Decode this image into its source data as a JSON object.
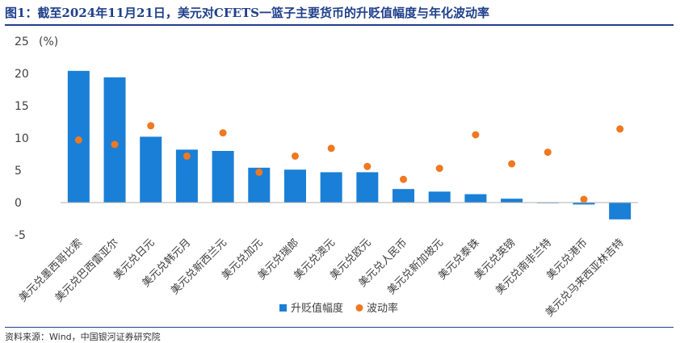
{
  "header": {
    "title": "图1：截至2024年11月21日，美元对CFETS一篮子主要货币的升贬值幅度与年化波动率",
    "source": "资料来源：Wind，中国银河证券研究院"
  },
  "chart_data": {
    "type": "bar",
    "unit": "(%)",
    "categories": [
      "美元兑墨西哥比索",
      "美元兑巴西雷亚尔",
      "美元兑日元",
      "美元兑韩元月",
      "美元兑新西兰元",
      "美元兑加元",
      "美元兑瑞郎",
      "美元兑澳元",
      "美元兑欧元",
      "美元兑人民币",
      "美元兑新加坡元",
      "美元兑泰铢",
      "美元兑英镑",
      "美元兑南非兰特",
      "美元兑港币",
      "美元兑马来西亚林吉特"
    ],
    "series": [
      {
        "name": "升贬值幅度",
        "type": "bar",
        "color": "#1a7fd6",
        "values": [
          20.4,
          19.4,
          10.2,
          8.2,
          8.0,
          5.4,
          5.1,
          4.7,
          4.7,
          2.1,
          1.7,
          1.3,
          0.6,
          -0.1,
          -0.3,
          -2.6
        ]
      },
      {
        "name": "波动率",
        "type": "scatter",
        "color": "#f07820",
        "values": [
          9.7,
          9.0,
          11.9,
          7.2,
          10.8,
          4.7,
          7.2,
          8.4,
          5.6,
          3.6,
          5.3,
          10.5,
          6.0,
          7.8,
          0.5,
          11.4
        ]
      }
    ],
    "ylim": [
      -5,
      25
    ],
    "yticks": [
      25,
      20,
      15,
      10,
      5,
      0,
      -5
    ],
    "legend": "bottom"
  }
}
